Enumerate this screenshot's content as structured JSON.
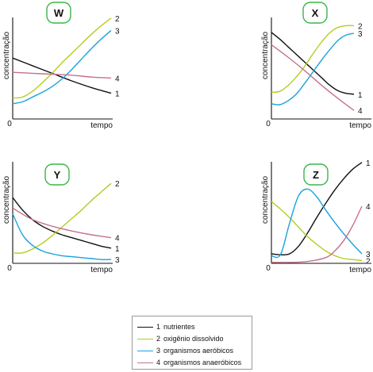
{
  "colors": {
    "line1": "#111111",
    "line2": "#b5cc1f",
    "line3": "#1aa3dd",
    "line4": "#c6708e",
    "badge_border": "#3ab54a"
  },
  "legend": {
    "items": [
      {
        "num": "1",
        "label": "nutrientes",
        "color": "#111111"
      },
      {
        "num": "2",
        "label": "oxigênio dissolvido",
        "color": "#b5cc1f"
      },
      {
        "num": "3",
        "label": "organismos aeróbicos",
        "color": "#1aa3dd"
      },
      {
        "num": "4",
        "label": "organismos anaeróbicos",
        "color": "#c6708e"
      }
    ]
  },
  "chart_data": [
    {
      "type": "line",
      "title": "W",
      "xlabel": "tempo",
      "ylabel": "concentração",
      "origin_label": "0",
      "xlim": [
        0,
        10
      ],
      "ylim": [
        0,
        10
      ],
      "series": [
        {
          "label": "1",
          "color": "#111111",
          "x": [
            0,
            2,
            4,
            6,
            8,
            10
          ],
          "y": [
            6.4,
            5.6,
            4.8,
            4.0,
            3.3,
            2.7
          ]
        },
        {
          "label": "2",
          "color": "#b5cc1f",
          "x": [
            0,
            1,
            2,
            3,
            4,
            5,
            6,
            7,
            8,
            9,
            10
          ],
          "y": [
            2.2,
            2.3,
            2.9,
            3.8,
            4.8,
            5.9,
            6.9,
            7.9,
            8.9,
            9.8,
            10.6
          ]
        },
        {
          "label": "3",
          "color": "#1aa3dd",
          "x": [
            0,
            1,
            2,
            3,
            4,
            5,
            6,
            7,
            8,
            9,
            10
          ],
          "y": [
            1.6,
            1.8,
            2.3,
            2.8,
            3.4,
            4.2,
            5.2,
            6.3,
            7.4,
            8.4,
            9.3
          ]
        },
        {
          "label": "4",
          "color": "#c6708e",
          "x": [
            0,
            2,
            4,
            6,
            8,
            10
          ],
          "y": [
            4.9,
            4.8,
            4.7,
            4.6,
            4.4,
            4.3
          ]
        }
      ]
    },
    {
      "type": "line",
      "title": "X",
      "xlabel": "tempo",
      "ylabel": "concentração",
      "origin_label": "0",
      "xlim": [
        0,
        10
      ],
      "ylim": [
        0,
        10
      ],
      "series": [
        {
          "label": "1",
          "color": "#111111",
          "x": [
            0,
            1,
            2,
            3,
            4,
            5,
            6,
            7,
            8,
            9,
            10
          ],
          "y": [
            9.1,
            8.4,
            7.6,
            6.8,
            6.0,
            5.2,
            4.4,
            3.6,
            3.0,
            2.7,
            2.6
          ]
        },
        {
          "label": "2",
          "color": "#b5cc1f",
          "x": [
            0,
            1,
            2,
            3,
            4,
            5,
            6,
            7,
            8,
            9,
            10
          ],
          "y": [
            2.8,
            2.9,
            3.5,
            4.4,
            5.5,
            6.8,
            8.0,
            9.0,
            9.6,
            9.8,
            9.8
          ]
        },
        {
          "label": "3",
          "color": "#1aa3dd",
          "x": [
            0,
            1,
            2,
            3,
            4,
            5,
            6,
            7,
            8,
            9,
            10
          ],
          "y": [
            1.6,
            1.5,
            1.9,
            2.6,
            3.7,
            4.9,
            6.1,
            7.2,
            8.2,
            8.8,
            9.0
          ]
        },
        {
          "label": "4",
          "color": "#c6708e",
          "x": [
            0,
            2,
            4,
            6,
            8,
            10
          ],
          "y": [
            7.8,
            6.5,
            5.1,
            3.6,
            2.2,
            0.9
          ]
        }
      ]
    },
    {
      "type": "line",
      "title": "Y",
      "xlabel": "tempo",
      "ylabel": "concentração",
      "origin_label": "0",
      "xlim": [
        0,
        10
      ],
      "ylim": [
        0,
        10
      ],
      "series": [
        {
          "label": "1",
          "color": "#111111",
          "x": [
            0,
            1,
            2,
            3,
            4,
            5,
            6,
            7,
            8,
            9,
            10
          ],
          "y": [
            6.9,
            5.6,
            4.6,
            3.9,
            3.4,
            3.0,
            2.7,
            2.4,
            2.1,
            1.8,
            1.6
          ]
        },
        {
          "label": "2",
          "color": "#b5cc1f",
          "x": [
            0,
            1,
            2,
            3,
            4,
            5,
            6,
            7,
            8,
            9,
            10
          ],
          "y": [
            1.1,
            1.1,
            1.5,
            2.1,
            2.9,
            3.8,
            4.7,
            5.6,
            6.6,
            7.5,
            8.4
          ]
        },
        {
          "label": "3",
          "color": "#1aa3dd",
          "x": [
            0,
            1,
            2,
            3,
            4,
            5,
            6,
            7,
            8,
            9,
            10
          ],
          "y": [
            5.2,
            3.0,
            1.9,
            1.3,
            1.0,
            0.8,
            0.7,
            0.6,
            0.5,
            0.4,
            0.4
          ]
        },
        {
          "label": "4",
          "color": "#c6708e",
          "x": [
            0,
            2,
            4,
            6,
            8,
            10
          ],
          "y": [
            5.8,
            4.6,
            3.9,
            3.4,
            3.0,
            2.7
          ]
        }
      ]
    },
    {
      "type": "line",
      "title": "Z",
      "xlabel": "tempo",
      "ylabel": "concentração",
      "origin_label": "0",
      "xlim": [
        0,
        10
      ],
      "ylim": [
        0,
        10
      ],
      "series": [
        {
          "label": "1",
          "color": "#111111",
          "x": [
            0,
            1,
            2,
            3,
            4,
            5,
            6,
            7,
            8,
            9,
            10
          ],
          "y": [
            1.0,
            0.9,
            1.0,
            1.8,
            3.2,
            4.8,
            6.3,
            7.7,
            8.9,
            9.9,
            10.6
          ]
        },
        {
          "label": "2",
          "color": "#b5cc1f",
          "x": [
            0,
            1,
            2,
            3,
            4,
            5,
            6,
            7,
            8,
            9,
            10
          ],
          "y": [
            6.5,
            5.7,
            4.8,
            3.8,
            2.8,
            2.0,
            1.3,
            0.8,
            0.5,
            0.4,
            0.3
          ]
        },
        {
          "label": "3",
          "color": "#1aa3dd",
          "x": [
            0,
            1,
            2,
            3,
            4,
            5,
            6,
            7,
            8,
            9,
            10
          ],
          "y": [
            0.8,
            0.9,
            4.2,
            7.1,
            7.8,
            7.0,
            5.6,
            4.3,
            3.1,
            2.0,
            1.0
          ]
        },
        {
          "label": "4",
          "color": "#c6708e",
          "x": [
            0,
            2,
            4,
            6,
            7,
            8,
            9,
            10
          ],
          "y": [
            0.1,
            0.1,
            0.2,
            0.6,
            1.3,
            2.4,
            4.0,
            6.0
          ]
        }
      ]
    }
  ]
}
